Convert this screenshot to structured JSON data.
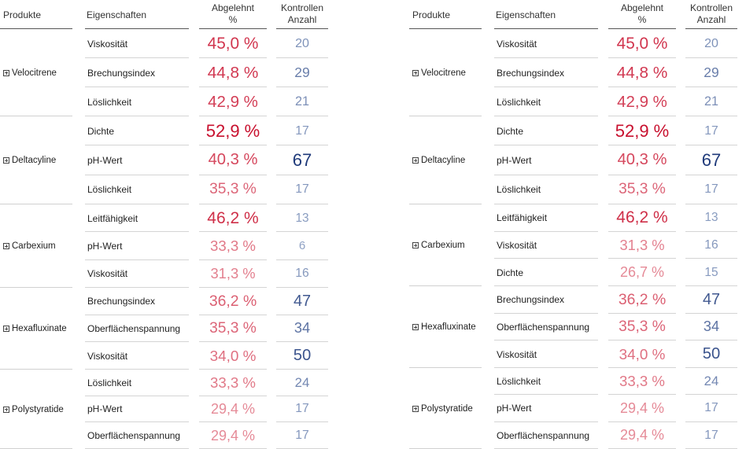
{
  "headers": {
    "produkte": "Produkte",
    "eigenschaften": "Eigenschaften",
    "abgelehnt_1": "Abgelehnt",
    "abgelehnt_2": "%",
    "kontrollen_1": "Kontrollen",
    "kontrollen_2": "Anzahl"
  },
  "colors": {
    "pct_dark": "#c8102e",
    "pct_light": "#e58a97",
    "cnt_dark": "#1f3a7a",
    "cnt_light": "#8fa1c4"
  },
  "left": {
    "groups": [
      {
        "name": "Velocitrene",
        "rows": [
          {
            "prop": "Viskosität",
            "pct": "45,0 %",
            "pct_level": 0.7,
            "cnt": "20",
            "cnt_level": 0.15
          },
          {
            "prop": "Brechungsindex",
            "pct": "44,8 %",
            "pct_level": 0.68,
            "cnt": "29",
            "cnt_level": 0.35
          },
          {
            "prop": "Löslichkeit",
            "pct": "42,9 %",
            "pct_level": 0.62,
            "cnt": "21",
            "cnt_level": 0.17
          }
        ]
      },
      {
        "name": "Deltacyline",
        "rows": [
          {
            "prop": "Dichte",
            "pct": "52,9 %",
            "pct_level": 1.0,
            "cnt": "17",
            "cnt_level": 0.1
          },
          {
            "prop": "pH-Wert",
            "pct": "40,3 %",
            "pct_level": 0.55,
            "cnt": "67",
            "cnt_level": 1.0
          },
          {
            "prop": "Löslichkeit",
            "pct": "35,3 %",
            "pct_level": 0.3,
            "cnt": "17",
            "cnt_level": 0.1
          }
        ]
      },
      {
        "name": "Carbexium",
        "rows": [
          {
            "prop": "Leitfähigkeit",
            "pct": "46,2 %",
            "pct_level": 0.75,
            "cnt": "13",
            "cnt_level": 0.05
          },
          {
            "prop": "pH-Wert",
            "pct": "33,3 %",
            "pct_level": 0.15,
            "cnt": "6",
            "cnt_level": 0.0
          },
          {
            "prop": "Viskosität",
            "pct": "31,3 %",
            "pct_level": 0.08,
            "cnt": "16",
            "cnt_level": 0.09
          }
        ]
      },
      {
        "name": "Hexafluxinate",
        "rows": [
          {
            "prop": "Brechungsindex",
            "pct": "36,2 %",
            "pct_level": 0.35,
            "cnt": "47",
            "cnt_level": 0.7
          },
          {
            "prop": "Oberflächenspannung",
            "pct": "35,3 %",
            "pct_level": 0.3,
            "cnt": "34",
            "cnt_level": 0.45
          },
          {
            "prop": "Viskosität",
            "pct": "34,0 %",
            "pct_level": 0.22,
            "cnt": "50",
            "cnt_level": 0.75
          }
        ]
      },
      {
        "name": "Polystyratide",
        "rows": [
          {
            "prop": "Löslichkeit",
            "pct": "33,3 %",
            "pct_level": 0.15,
            "cnt": "24",
            "cnt_level": 0.25
          },
          {
            "prop": "pH-Wert",
            "pct": "29,4 %",
            "pct_level": 0.0,
            "cnt": "17",
            "cnt_level": 0.1
          },
          {
            "prop": "Oberflächenspannung",
            "pct": "29,4 %",
            "pct_level": 0.0,
            "cnt": "17",
            "cnt_level": 0.1
          }
        ]
      }
    ]
  },
  "right": {
    "groups": [
      {
        "name": "Velocitrene",
        "rows": [
          {
            "prop": "Viskosität",
            "pct": "45,0 %",
            "pct_level": 0.7,
            "cnt": "20",
            "cnt_level": 0.15
          },
          {
            "prop": "Brechungsindex",
            "pct": "44,8 %",
            "pct_level": 0.68,
            "cnt": "29",
            "cnt_level": 0.35
          },
          {
            "prop": "Löslichkeit",
            "pct": "42,9 %",
            "pct_level": 0.62,
            "cnt": "21",
            "cnt_level": 0.17
          }
        ]
      },
      {
        "name": "Deltacyline",
        "rows": [
          {
            "prop": "Dichte",
            "pct": "52,9 %",
            "pct_level": 1.0,
            "cnt": "17",
            "cnt_level": 0.1
          },
          {
            "prop": "pH-Wert",
            "pct": "40,3 %",
            "pct_level": 0.55,
            "cnt": "67",
            "cnt_level": 1.0
          },
          {
            "prop": "Löslichkeit",
            "pct": "35,3 %",
            "pct_level": 0.3,
            "cnt": "17",
            "cnt_level": 0.1
          }
        ]
      },
      {
        "name": "Carbexium",
        "rows": [
          {
            "prop": "Leitfähigkeit",
            "pct": "46,2 %",
            "pct_level": 0.75,
            "cnt": "13",
            "cnt_level": 0.05
          },
          {
            "prop": "Viskosität",
            "pct": "31,3 %",
            "pct_level": 0.08,
            "cnt": "16",
            "cnt_level": 0.09
          },
          {
            "prop": "Dichte",
            "pct": "26,7 %",
            "pct_level": 0.0,
            "cnt": "15",
            "cnt_level": 0.07
          }
        ]
      },
      {
        "name": "Hexafluxinate",
        "rows": [
          {
            "prop": "Brechungsindex",
            "pct": "36,2 %",
            "pct_level": 0.35,
            "cnt": "47",
            "cnt_level": 0.7
          },
          {
            "prop": "Oberflächenspannung",
            "pct": "35,3 %",
            "pct_level": 0.3,
            "cnt": "34",
            "cnt_level": 0.45
          },
          {
            "prop": "Viskosität",
            "pct": "34,0 %",
            "pct_level": 0.22,
            "cnt": "50",
            "cnt_level": 0.75
          }
        ]
      },
      {
        "name": "Polystyratide",
        "rows": [
          {
            "prop": "Löslichkeit",
            "pct": "33,3 %",
            "pct_level": 0.15,
            "cnt": "24",
            "cnt_level": 0.25
          },
          {
            "prop": "pH-Wert",
            "pct": "29,4 %",
            "pct_level": 0.0,
            "cnt": "17",
            "cnt_level": 0.1
          },
          {
            "prop": "Oberflächenspannung",
            "pct": "29,4 %",
            "pct_level": 0.0,
            "cnt": "17",
            "cnt_level": 0.1
          }
        ]
      }
    ]
  }
}
